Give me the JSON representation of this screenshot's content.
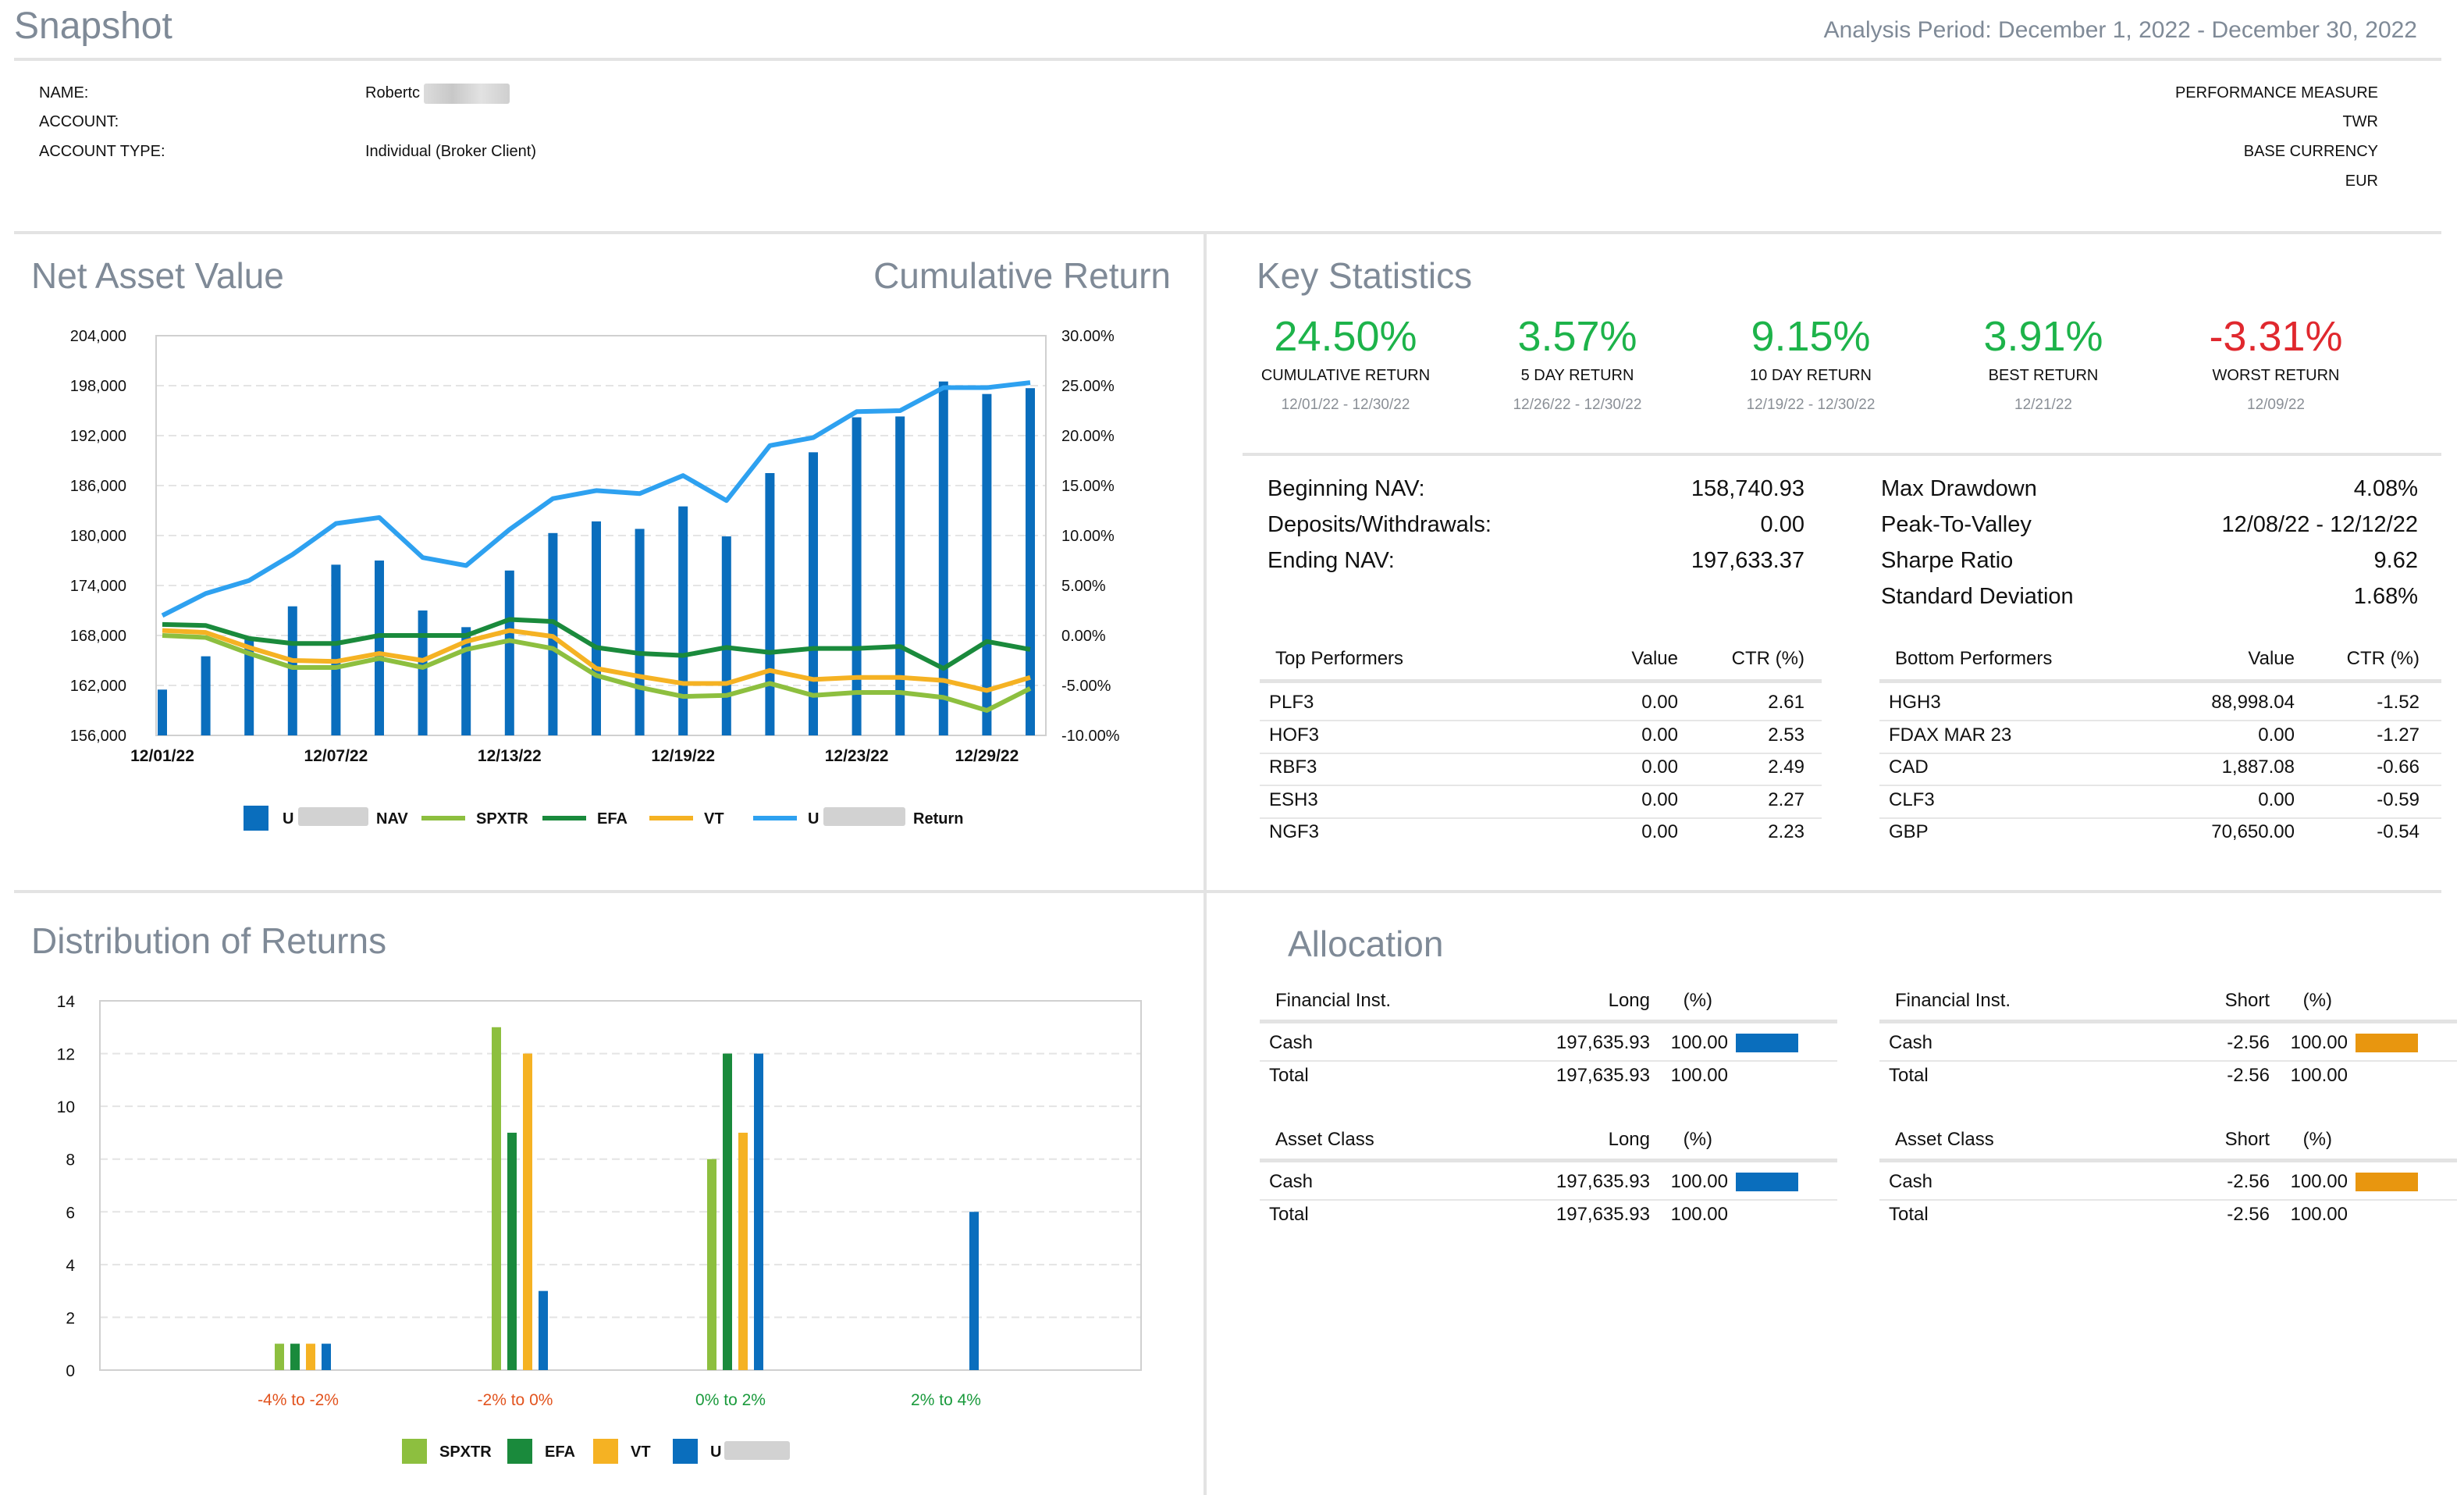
{
  "header": {
    "title": "Snapshot",
    "analysis_period": "Analysis Period: December 1, 2022 - December 30, 2022"
  },
  "account_info": {
    "name_label": "NAME:",
    "name_value": "Robertc",
    "account_label": "ACCOUNT:",
    "account_type_label": "ACCOUNT TYPE:",
    "account_type_value": "Individual (Broker Client)",
    "performance_measure_label": "PERFORMANCE MEASURE",
    "performance_measure_value": "TWR",
    "base_currency_label": "BASE CURRENCY",
    "base_currency_value": "EUR"
  },
  "nav_section": {
    "title": "Net Asset Value",
    "title_right": "Cumulative Return"
  },
  "key_statistics": {
    "title": "Key Statistics",
    "cards": [
      {
        "value": "24.50%",
        "label": "CUMULATIVE RETURN",
        "date": "12/01/22 - 12/30/22",
        "color": "#1db34a"
      },
      {
        "value": "3.57%",
        "label": "5 DAY RETURN",
        "date": "12/26/22 - 12/30/22",
        "color": "#1db34a"
      },
      {
        "value": "9.15%",
        "label": "10 DAY RETURN",
        "date": "12/19/22 - 12/30/22",
        "color": "#1db34a"
      },
      {
        "value": "3.91%",
        "label": "BEST RETURN",
        "date": "12/21/22",
        "color": "#1db34a"
      },
      {
        "value": "-3.31%",
        "label": "WORST RETURN",
        "date": "12/09/22",
        "color": "#e0282e"
      }
    ],
    "left_stats": [
      {
        "label": "Beginning NAV:",
        "value": "158,740.93"
      },
      {
        "label": "Deposits/Withdrawals:",
        "value": "0.00"
      },
      {
        "label": "Ending NAV:",
        "value": "197,633.37"
      }
    ],
    "right_stats": [
      {
        "label": "Max Drawdown",
        "value": "4.08%"
      },
      {
        "label": "Peak-To-Valley",
        "value": "12/08/22 - 12/12/22"
      },
      {
        "label": "Sharpe Ratio",
        "value": "9.62"
      },
      {
        "label": "Standard Deviation",
        "value": "1.68%"
      }
    ],
    "top_performers": {
      "headers": [
        "Top Performers",
        "Value",
        "CTR (%)"
      ],
      "rows": [
        [
          "PLF3",
          "0.00",
          "2.61"
        ],
        [
          "HOF3",
          "0.00",
          "2.53"
        ],
        [
          "RBF3",
          "0.00",
          "2.49"
        ],
        [
          "ESH3",
          "0.00",
          "2.27"
        ],
        [
          "NGF3",
          "0.00",
          "2.23"
        ]
      ]
    },
    "bottom_performers": {
      "headers": [
        "Bottom Performers",
        "Value",
        "CTR (%)"
      ],
      "rows": [
        [
          "HGH3",
          "88,998.04",
          "-1.52"
        ],
        [
          "FDAX MAR 23",
          "0.00",
          "-1.27"
        ],
        [
          "CAD",
          "1,887.08",
          "-0.66"
        ],
        [
          "CLF3",
          "0.00",
          "-0.59"
        ],
        [
          "GBP",
          "70,650.00",
          "-0.54"
        ]
      ]
    }
  },
  "distribution_section": {
    "title": "Distribution of Returns"
  },
  "allocation": {
    "title": "Allocation",
    "tables": [
      {
        "headers": [
          "Financial Inst.",
          "Long",
          "(%)"
        ],
        "rows": [
          [
            "Cash",
            "197,635.93",
            "100.00"
          ]
        ],
        "total": [
          "Total",
          "197,635.93",
          "100.00"
        ],
        "bar_color": "#0a6ebd",
        "bar_fraction": 1.0
      },
      {
        "headers": [
          "Financial Inst.",
          "Short",
          "(%)"
        ],
        "rows": [
          [
            "Cash",
            "-2.56",
            "100.00"
          ]
        ],
        "total": [
          "Total",
          "-2.56",
          "100.00"
        ],
        "bar_color": "#e8960f",
        "bar_fraction": 1.0
      },
      {
        "headers": [
          "Asset Class",
          "Long",
          "(%)"
        ],
        "rows": [
          [
            "Cash",
            "197,635.93",
            "100.00"
          ]
        ],
        "total": [
          "Total",
          "197,635.93",
          "100.00"
        ],
        "bar_color": "#0a6ebd",
        "bar_fraction": 1.0
      },
      {
        "headers": [
          "Asset Class",
          "Short",
          "(%)"
        ],
        "rows": [
          [
            "Cash",
            "-2.56",
            "100.00"
          ]
        ],
        "total": [
          "Total",
          "-2.56",
          "100.00"
        ],
        "bar_color": "#e8960f",
        "bar_fraction": 1.0
      }
    ]
  },
  "chart_data": [
    {
      "type": "bar",
      "title": "Net Asset Value",
      "x": [
        "12/01/22",
        "12/02/22",
        "12/05/22",
        "12/06/22",
        "12/07/22",
        "12/08/22",
        "12/09/22",
        "12/12/22",
        "12/13/22",
        "12/14/22",
        "12/15/22",
        "12/16/22",
        "12/19/22",
        "12/20/22",
        "12/21/22",
        "12/22/22",
        "12/23/22",
        "12/27/22",
        "12/28/22",
        "12/29/22",
        "12/30/22"
      ],
      "x_tick_labels": [
        "12/01/22",
        "12/07/22",
        "12/13/22",
        "12/19/22",
        "12/23/22",
        "12/29/22"
      ],
      "y_left_ticks": [
        "204,000",
        "198,000",
        "192,000",
        "186,000",
        "180,000",
        "174,000",
        "168,000",
        "162,000",
        "156,000"
      ],
      "y_right_ticks": [
        "30.00%",
        "25.00%",
        "20.00%",
        "15.00%",
        "10.00%",
        "5.00%",
        "0.00%",
        "-5.00%",
        "-10.00%"
      ],
      "ylim_left": [
        156000,
        204000
      ],
      "ylim_right": [
        -10,
        30
      ],
      "bar_color": "#0a6ebd",
      "series": [
        {
          "name": "U NAV",
          "kind": "bar",
          "axis": "left",
          "color": "#0a6ebd",
          "values": [
            161500,
            165500,
            167500,
            171500,
            176500,
            177000,
            171000,
            169000,
            175800,
            180300,
            181700,
            180800,
            183500,
            179900,
            187500,
            190000,
            194200,
            194300,
            198500,
            197000,
            197700
          ]
        },
        {
          "name": "SPXTR",
          "kind": "line",
          "axis": "right",
          "color": "#8dbf3f",
          "values": [
            0.0,
            -0.2,
            -1.8,
            -3.2,
            -3.2,
            -2.3,
            -3.2,
            -1.4,
            -0.5,
            -1.3,
            -4.0,
            -5.2,
            -6.1,
            -6.0,
            -4.8,
            -6.0,
            -5.7,
            -5.7,
            -6.2,
            -7.5,
            -5.3
          ]
        },
        {
          "name": "EFA",
          "kind": "line",
          "axis": "right",
          "color": "#1a8a3c",
          "values": [
            1.1,
            1.0,
            -0.3,
            -0.8,
            -0.8,
            0.0,
            0.0,
            0.0,
            1.6,
            1.4,
            -1.2,
            -1.8,
            -2.0,
            -1.2,
            -1.7,
            -1.3,
            -1.3,
            -1.1,
            -3.3,
            -0.6,
            -1.4
          ]
        },
        {
          "name": "VT",
          "kind": "line",
          "axis": "right",
          "color": "#f5b223",
          "values": [
            0.5,
            0.3,
            -1.2,
            -2.5,
            -2.6,
            -1.8,
            -2.5,
            -0.6,
            0.5,
            -0.1,
            -3.3,
            -4.1,
            -4.8,
            -4.8,
            -3.5,
            -4.4,
            -4.2,
            -4.2,
            -4.5,
            -5.5,
            -4.2
          ]
        },
        {
          "name": "U Return",
          "kind": "line",
          "axis": "right",
          "color": "#2ea1f0",
          "values": [
            2.0,
            4.2,
            5.5,
            8.1,
            11.2,
            11.8,
            7.8,
            7.0,
            10.6,
            13.7,
            14.5,
            14.2,
            16.0,
            13.5,
            19.0,
            19.8,
            22.4,
            22.5,
            24.8,
            24.8,
            25.3
          ]
        }
      ]
    },
    {
      "type": "bar",
      "title": "Distribution of Returns",
      "categories": [
        "-4% to -2%",
        "-2% to 0%",
        "0% to 2%",
        "2% to 4%"
      ],
      "category_colors": [
        "#e2531e",
        "#e2531e",
        "#1a9a3c",
        "#1a9a3c"
      ],
      "ylim": [
        0,
        14
      ],
      "y_ticks": [
        "14",
        "12",
        "10",
        "8",
        "6",
        "4",
        "2",
        "0"
      ],
      "series": [
        {
          "name": "SPXTR",
          "color": "#8dbf3f",
          "values": [
            1,
            13,
            8,
            0
          ]
        },
        {
          "name": "EFA",
          "color": "#1a8a3c",
          "values": [
            1,
            9,
            12,
            0
          ]
        },
        {
          "name": "VT",
          "color": "#f5b223",
          "values": [
            1,
            12,
            9,
            0
          ]
        },
        {
          "name": "U",
          "color": "#0a6ebd",
          "values": [
            1,
            3,
            12,
            6
          ]
        }
      ]
    }
  ]
}
